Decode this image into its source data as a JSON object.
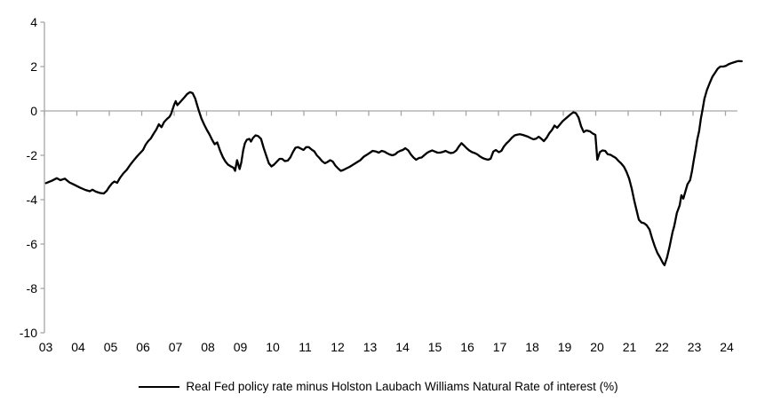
{
  "legend": {
    "label": "Real Fed policy rate minus Holston Laubach Williams Natural Rate of interest (%)"
  },
  "colors": {
    "line": "#000000",
    "axis": "#a6a6a6",
    "text": "#000000",
    "background": "#ffffff"
  },
  "chart_data": {
    "type": "line",
    "title": "",
    "xlabel": "",
    "ylabel": "",
    "grid": "zero-line-only",
    "legend_position": "bottom-center",
    "x_axis": {
      "labels": [
        "03",
        "04",
        "05",
        "06",
        "07",
        "08",
        "09",
        "10",
        "11",
        "12",
        "13",
        "14",
        "15",
        "16",
        "17",
        "18",
        "19",
        "20",
        "21",
        "22",
        "23",
        "24"
      ],
      "start_year": 2003,
      "end_year": 2024
    },
    "y_axis": {
      "ticks": [
        4,
        2,
        0,
        -2,
        -4,
        -6,
        -8,
        -10
      ],
      "min": -10,
      "max": 4
    },
    "series": [
      {
        "name": "Real Fed policy rate minus Holston Laubach Williams Natural Rate of interest (%)",
        "color": "#000000",
        "points": [
          [
            2003.05,
            -3.25
          ],
          [
            2003.22,
            -3.15
          ],
          [
            2003.38,
            -3.03
          ],
          [
            2003.49,
            -3.12
          ],
          [
            2003.63,
            -3.05
          ],
          [
            2003.77,
            -3.22
          ],
          [
            2003.93,
            -3.33
          ],
          [
            2004.09,
            -3.45
          ],
          [
            2004.26,
            -3.56
          ],
          [
            2004.4,
            -3.62
          ],
          [
            2004.48,
            -3.55
          ],
          [
            2004.59,
            -3.64
          ],
          [
            2004.72,
            -3.7
          ],
          [
            2004.83,
            -3.72
          ],
          [
            2004.92,
            -3.6
          ],
          [
            2005.0,
            -3.42
          ],
          [
            2005.08,
            -3.27
          ],
          [
            2005.16,
            -3.18
          ],
          [
            2005.24,
            -3.24
          ],
          [
            2005.33,
            -3.02
          ],
          [
            2005.43,
            -2.82
          ],
          [
            2005.54,
            -2.65
          ],
          [
            2005.65,
            -2.42
          ],
          [
            2005.74,
            -2.25
          ],
          [
            2005.85,
            -2.06
          ],
          [
            2005.95,
            -1.9
          ],
          [
            2006.04,
            -1.76
          ],
          [
            2006.12,
            -1.52
          ],
          [
            2006.2,
            -1.36
          ],
          [
            2006.28,
            -1.24
          ],
          [
            2006.37,
            -1.02
          ],
          [
            2006.45,
            -0.84
          ],
          [
            2006.53,
            -0.6
          ],
          [
            2006.61,
            -0.73
          ],
          [
            2006.69,
            -0.5
          ],
          [
            2006.78,
            -0.36
          ],
          [
            2006.86,
            -0.26
          ],
          [
            2006.91,
            -0.12
          ],
          [
            2007.0,
            0.28
          ],
          [
            2007.05,
            0.44
          ],
          [
            2007.1,
            0.26
          ],
          [
            2007.21,
            0.44
          ],
          [
            2007.32,
            0.62
          ],
          [
            2007.4,
            0.76
          ],
          [
            2007.49,
            0.85
          ],
          [
            2007.57,
            0.8
          ],
          [
            2007.65,
            0.56
          ],
          [
            2007.71,
            0.26
          ],
          [
            2007.76,
            0.02
          ],
          [
            2007.84,
            -0.34
          ],
          [
            2007.92,
            -0.6
          ],
          [
            2008.01,
            -0.86
          ],
          [
            2008.09,
            -1.06
          ],
          [
            2008.17,
            -1.3
          ],
          [
            2008.25,
            -1.5
          ],
          [
            2008.33,
            -1.42
          ],
          [
            2008.42,
            -1.8
          ],
          [
            2008.5,
            -2.08
          ],
          [
            2008.58,
            -2.28
          ],
          [
            2008.66,
            -2.42
          ],
          [
            2008.75,
            -2.5
          ],
          [
            2008.83,
            -2.56
          ],
          [
            2008.88,
            -2.7
          ],
          [
            2008.94,
            -2.22
          ],
          [
            2009.02,
            -2.62
          ],
          [
            2009.07,
            -2.32
          ],
          [
            2009.13,
            -1.78
          ],
          [
            2009.18,
            -1.46
          ],
          [
            2009.24,
            -1.3
          ],
          [
            2009.32,
            -1.26
          ],
          [
            2009.37,
            -1.38
          ],
          [
            2009.43,
            -1.22
          ],
          [
            2009.51,
            -1.1
          ],
          [
            2009.59,
            -1.13
          ],
          [
            2009.68,
            -1.26
          ],
          [
            2009.76,
            -1.66
          ],
          [
            2009.84,
            -2.02
          ],
          [
            2009.92,
            -2.36
          ],
          [
            2010.0,
            -2.5
          ],
          [
            2010.08,
            -2.42
          ],
          [
            2010.17,
            -2.28
          ],
          [
            2010.25,
            -2.16
          ],
          [
            2010.33,
            -2.16
          ],
          [
            2010.41,
            -2.26
          ],
          [
            2010.5,
            -2.24
          ],
          [
            2010.58,
            -2.1
          ],
          [
            2010.66,
            -1.86
          ],
          [
            2010.74,
            -1.66
          ],
          [
            2010.82,
            -1.63
          ],
          [
            2010.91,
            -1.7
          ],
          [
            2010.99,
            -1.76
          ],
          [
            2011.07,
            -1.63
          ],
          [
            2011.15,
            -1.63
          ],
          [
            2011.23,
            -1.73
          ],
          [
            2011.32,
            -1.82
          ],
          [
            2011.4,
            -2.0
          ],
          [
            2011.48,
            -2.12
          ],
          [
            2011.56,
            -2.26
          ],
          [
            2011.65,
            -2.36
          ],
          [
            2011.73,
            -2.3
          ],
          [
            2011.81,
            -2.22
          ],
          [
            2011.89,
            -2.28
          ],
          [
            2011.97,
            -2.46
          ],
          [
            2012.06,
            -2.6
          ],
          [
            2012.14,
            -2.7
          ],
          [
            2012.22,
            -2.66
          ],
          [
            2012.3,
            -2.6
          ],
          [
            2012.41,
            -2.52
          ],
          [
            2012.52,
            -2.42
          ],
          [
            2012.63,
            -2.32
          ],
          [
            2012.74,
            -2.22
          ],
          [
            2012.85,
            -2.06
          ],
          [
            2012.96,
            -1.96
          ],
          [
            2013.04,
            -1.88
          ],
          [
            2013.12,
            -1.8
          ],
          [
            2013.23,
            -1.83
          ],
          [
            2013.31,
            -1.88
          ],
          [
            2013.4,
            -1.8
          ],
          [
            2013.48,
            -1.83
          ],
          [
            2013.56,
            -1.9
          ],
          [
            2013.64,
            -1.96
          ],
          [
            2013.73,
            -2.0
          ],
          [
            2013.81,
            -1.96
          ],
          [
            2013.89,
            -1.86
          ],
          [
            2013.97,
            -1.8
          ],
          [
            2014.05,
            -1.76
          ],
          [
            2014.13,
            -1.68
          ],
          [
            2014.22,
            -1.78
          ],
          [
            2014.3,
            -1.96
          ],
          [
            2014.38,
            -2.1
          ],
          [
            2014.46,
            -2.2
          ],
          [
            2014.55,
            -2.12
          ],
          [
            2014.63,
            -2.1
          ],
          [
            2014.71,
            -2.0
          ],
          [
            2014.79,
            -1.9
          ],
          [
            2014.87,
            -1.83
          ],
          [
            2014.96,
            -1.78
          ],
          [
            2015.04,
            -1.83
          ],
          [
            2015.12,
            -1.88
          ],
          [
            2015.2,
            -1.88
          ],
          [
            2015.28,
            -1.85
          ],
          [
            2015.37,
            -1.8
          ],
          [
            2015.45,
            -1.86
          ],
          [
            2015.53,
            -1.9
          ],
          [
            2015.61,
            -1.88
          ],
          [
            2015.7,
            -1.78
          ],
          [
            2015.78,
            -1.6
          ],
          [
            2015.86,
            -1.45
          ],
          [
            2015.94,
            -1.56
          ],
          [
            2016.02,
            -1.68
          ],
          [
            2016.1,
            -1.78
          ],
          [
            2016.19,
            -1.86
          ],
          [
            2016.27,
            -1.9
          ],
          [
            2016.35,
            -1.96
          ],
          [
            2016.43,
            -2.05
          ],
          [
            2016.51,
            -2.12
          ],
          [
            2016.6,
            -2.17
          ],
          [
            2016.68,
            -2.2
          ],
          [
            2016.76,
            -2.15
          ],
          [
            2016.84,
            -1.83
          ],
          [
            2016.92,
            -1.76
          ],
          [
            2017.01,
            -1.86
          ],
          [
            2017.09,
            -1.8
          ],
          [
            2017.17,
            -1.6
          ],
          [
            2017.25,
            -1.46
          ],
          [
            2017.33,
            -1.35
          ],
          [
            2017.42,
            -1.2
          ],
          [
            2017.5,
            -1.1
          ],
          [
            2017.58,
            -1.07
          ],
          [
            2017.66,
            -1.05
          ],
          [
            2017.75,
            -1.08
          ],
          [
            2017.83,
            -1.12
          ],
          [
            2017.91,
            -1.16
          ],
          [
            2017.99,
            -1.22
          ],
          [
            2018.08,
            -1.28
          ],
          [
            2018.16,
            -1.25
          ],
          [
            2018.24,
            -1.16
          ],
          [
            2018.32,
            -1.25
          ],
          [
            2018.4,
            -1.36
          ],
          [
            2018.49,
            -1.2
          ],
          [
            2018.57,
            -1.0
          ],
          [
            2018.65,
            -0.86
          ],
          [
            2018.73,
            -0.66
          ],
          [
            2018.81,
            -0.76
          ],
          [
            2018.9,
            -0.6
          ],
          [
            2018.98,
            -0.46
          ],
          [
            2019.06,
            -0.36
          ],
          [
            2019.14,
            -0.26
          ],
          [
            2019.22,
            -0.16
          ],
          [
            2019.31,
            -0.06
          ],
          [
            2019.39,
            -0.1
          ],
          [
            2019.47,
            -0.3
          ],
          [
            2019.55,
            -0.7
          ],
          [
            2019.63,
            -0.95
          ],
          [
            2019.71,
            -0.88
          ],
          [
            2019.82,
            -0.92
          ],
          [
            2019.91,
            -1.02
          ],
          [
            2019.99,
            -1.08
          ],
          [
            2020.05,
            -2.2
          ],
          [
            2020.13,
            -1.85
          ],
          [
            2020.21,
            -1.78
          ],
          [
            2020.29,
            -1.8
          ],
          [
            2020.37,
            -1.95
          ],
          [
            2020.46,
            -1.98
          ],
          [
            2020.54,
            -2.05
          ],
          [
            2020.62,
            -2.12
          ],
          [
            2020.7,
            -2.25
          ],
          [
            2020.78,
            -2.36
          ],
          [
            2020.87,
            -2.52
          ],
          [
            2020.95,
            -2.75
          ],
          [
            2021.03,
            -3.05
          ],
          [
            2021.11,
            -3.5
          ],
          [
            2021.19,
            -4.05
          ],
          [
            2021.27,
            -4.55
          ],
          [
            2021.33,
            -4.9
          ],
          [
            2021.41,
            -5.03
          ],
          [
            2021.49,
            -5.06
          ],
          [
            2021.57,
            -5.15
          ],
          [
            2021.66,
            -5.35
          ],
          [
            2021.74,
            -5.75
          ],
          [
            2021.82,
            -6.1
          ],
          [
            2021.9,
            -6.4
          ],
          [
            2021.98,
            -6.6
          ],
          [
            2022.07,
            -6.85
          ],
          [
            2022.12,
            -6.95
          ],
          [
            2022.2,
            -6.6
          ],
          [
            2022.28,
            -6.1
          ],
          [
            2022.37,
            -5.45
          ],
          [
            2022.42,
            -5.2
          ],
          [
            2022.5,
            -4.6
          ],
          [
            2022.59,
            -4.25
          ],
          [
            2022.64,
            -3.8
          ],
          [
            2022.7,
            -3.95
          ],
          [
            2022.75,
            -3.7
          ],
          [
            2022.83,
            -3.3
          ],
          [
            2022.91,
            -3.12
          ],
          [
            2022.97,
            -2.7
          ],
          [
            2023.02,
            -2.25
          ],
          [
            2023.08,
            -1.75
          ],
          [
            2023.13,
            -1.3
          ],
          [
            2023.19,
            -0.9
          ],
          [
            2023.24,
            -0.35
          ],
          [
            2023.3,
            0.1
          ],
          [
            2023.35,
            0.55
          ],
          [
            2023.43,
            0.95
          ],
          [
            2023.52,
            1.28
          ],
          [
            2023.6,
            1.55
          ],
          [
            2023.68,
            1.72
          ],
          [
            2023.76,
            1.9
          ],
          [
            2023.84,
            2.0
          ],
          [
            2023.93,
            2.0
          ],
          [
            2024.01,
            2.03
          ],
          [
            2024.09,
            2.1
          ],
          [
            2024.17,
            2.15
          ],
          [
            2024.28,
            2.2
          ],
          [
            2024.39,
            2.25
          ],
          [
            2024.5,
            2.24
          ]
        ]
      }
    ]
  }
}
